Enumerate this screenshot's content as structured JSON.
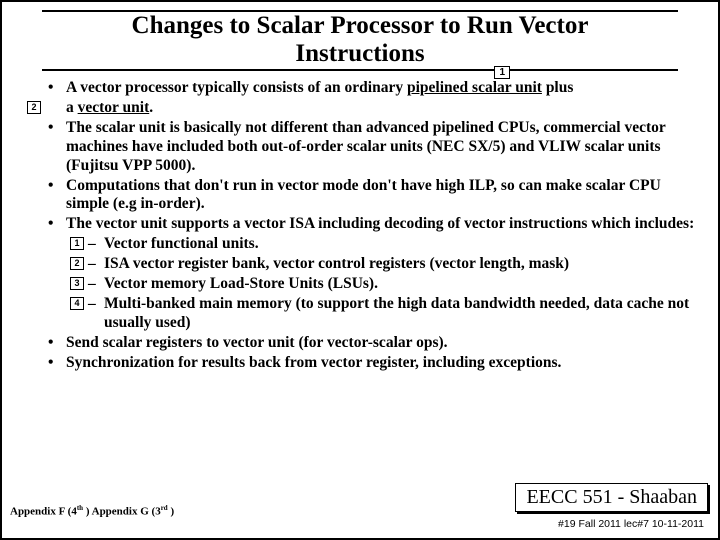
{
  "title_line1": "Changes to Scalar Processor to Run Vector",
  "title_line2": "Instructions",
  "title_badge": "1",
  "left_badge": "2",
  "bullets": {
    "b1a": "A vector processor typically consists of an ordinary ",
    "b1b": "pipelined scalar unit",
    "b1c": " plus",
    "b1d": "a ",
    "b1e": "vector unit",
    "b1f": ".",
    "b2": "The scalar unit is basically not different than advanced pipelined CPUs, commercial vector machines have included both out-of-order scalar units (NEC SX/5) and VLIW scalar units (Fujitsu VPP 5000).",
    "b3": "Computations that don't run in vector mode  don't have high ILP, so can make scalar CPU simple (e.g in-order).",
    "b4": "The vector unit supports a vector ISA including decoding of vector instructions which includes:",
    "b5": "Send scalar registers to vector unit  (for vector-scalar ops).",
    "b6": "Synchronization for results back from vector register, including exceptions."
  },
  "subs": {
    "n1": "1",
    "s1": "Vector functional units.",
    "n2": "2",
    "s2": "ISA vector register bank,  vector control registers (vector length, mask)",
    "n3": "3",
    "s3": "Vector memory Load-Store Units (LSUs).",
    "n4": "4",
    "s4": "Multi-banked main memory (to support the high data bandwidth needed, data cache not usually used)"
  },
  "footer_left_a": "Appendix F (4",
  "footer_left_b": " ) Appendix G (3",
  "footer_left_c": " )",
  "sup_th": "th",
  "sup_rd": "rd",
  "course": "EECC 551 - Shaaban",
  "footer_right": "#19   Fall 2011  lec#7   10-11-2011"
}
